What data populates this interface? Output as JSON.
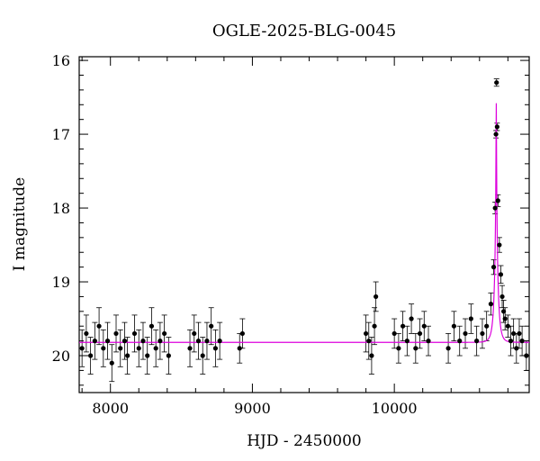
{
  "chart_data": {
    "type": "scatter",
    "title": "OGLE-2025-BLG-0045",
    "xlabel": "HJD - 2450000",
    "ylabel": "I magnitude",
    "xlim": [
      7780,
      10950
    ],
    "ylim": [
      20.5,
      15.95
    ],
    "y_inverted": true,
    "grid": false,
    "legend": "none",
    "x_ticks": [
      8000,
      9000,
      10000
    ],
    "x_tick_labels": [
      "8000",
      "9000",
      "10000"
    ],
    "y_ticks": [
      16,
      17,
      18,
      19,
      20
    ],
    "y_tick_labels": [
      "16",
      "17",
      "18",
      "19",
      "20"
    ],
    "model": {
      "color": "#dd00dd",
      "baseline_mag": 19.82,
      "t0": 10718,
      "u0": 0.05,
      "tE": 25
    },
    "series": [
      {
        "color": "#000000",
        "marker": "filled-circle-with-errorbars",
        "x": [
          7800,
          7830,
          7860,
          7890,
          7920,
          7950,
          7980,
          8010,
          8040,
          8070,
          8100,
          8120,
          8170,
          8200,
          8230,
          8260,
          8290,
          8320,
          8350,
          8380,
          8410,
          8560,
          8590,
          8620,
          8650,
          8680,
          8710,
          8740,
          8770,
          8910,
          8930,
          9800,
          9820,
          9840,
          9860,
          9870,
          10000,
          10030,
          10060,
          10090,
          10120,
          10150,
          10180,
          10210,
          10240,
          10380,
          10420,
          10460,
          10500,
          10540,
          10580,
          10620,
          10650,
          10680,
          10700,
          10710,
          10716,
          10720,
          10724,
          10730,
          10740,
          10750,
          10760,
          10770,
          10780,
          10800,
          10820,
          10840,
          10860,
          10880,
          10900,
          10930
        ],
        "y": [
          19.9,
          19.7,
          20.0,
          19.8,
          19.6,
          19.9,
          19.8,
          20.1,
          19.7,
          19.9,
          19.8,
          20.0,
          19.7,
          19.9,
          19.8,
          20.0,
          19.6,
          19.9,
          19.8,
          19.7,
          20.0,
          19.9,
          19.7,
          19.8,
          20.0,
          19.8,
          19.6,
          19.9,
          19.8,
          19.9,
          19.7,
          19.7,
          19.8,
          20.0,
          19.6,
          19.2,
          19.7,
          19.9,
          19.6,
          19.8,
          19.5,
          19.9,
          19.7,
          19.6,
          19.8,
          19.9,
          19.6,
          19.8,
          19.7,
          19.5,
          19.8,
          19.7,
          19.6,
          19.3,
          18.8,
          18.0,
          17.0,
          16.3,
          16.9,
          17.9,
          18.5,
          18.9,
          19.2,
          19.4,
          19.5,
          19.6,
          19.8,
          19.7,
          19.9,
          19.7,
          19.8,
          20.0
        ],
        "err": [
          0.25,
          0.25,
          0.25,
          0.25,
          0.25,
          0.25,
          0.25,
          0.25,
          0.25,
          0.25,
          0.25,
          0.25,
          0.25,
          0.25,
          0.25,
          0.25,
          0.25,
          0.25,
          0.25,
          0.25,
          0.25,
          0.25,
          0.25,
          0.25,
          0.25,
          0.25,
          0.25,
          0.25,
          0.25,
          0.2,
          0.2,
          0.25,
          0.25,
          0.25,
          0.25,
          0.2,
          0.2,
          0.2,
          0.2,
          0.2,
          0.2,
          0.2,
          0.2,
          0.2,
          0.2,
          0.2,
          0.2,
          0.2,
          0.2,
          0.2,
          0.2,
          0.2,
          0.2,
          0.15,
          0.1,
          0.08,
          0.05,
          0.05,
          0.05,
          0.08,
          0.1,
          0.12,
          0.15,
          0.15,
          0.15,
          0.15,
          0.2,
          0.2,
          0.2,
          0.2,
          0.2,
          0.2
        ]
      }
    ]
  }
}
